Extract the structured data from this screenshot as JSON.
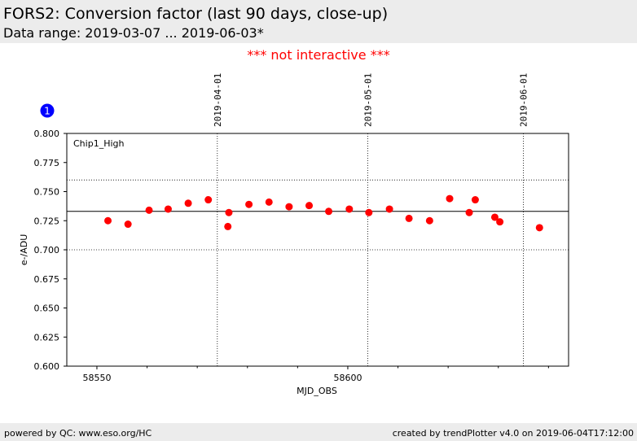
{
  "header": {
    "title": "FORS2: Conversion factor (last 90 days, close-up)",
    "subtitle": "Data range: 2019-03-07 ... 2019-06-03*"
  },
  "notice": "*** not interactive ***",
  "footer": {
    "left": "powered by QC: www.eso.org/HC",
    "right": "created by trendPlotter v4.0 on 2019-06-04T17:12:00"
  },
  "badge": "1",
  "colors": {
    "points": "#ff0000",
    "notice": "#ff0000",
    "badge": "#0000ff"
  },
  "chart_data": {
    "type": "scatter",
    "panel_label": "Chip1_High",
    "xlabel": "MJD_OBS",
    "ylabel": "e-/ADU",
    "xlim": [
      58544,
      58644
    ],
    "ylim": [
      0.6,
      0.8
    ],
    "x_ticks": [
      58550,
      58600
    ],
    "x_tick_labels": [
      "58550",
      "58600"
    ],
    "y_ticks": [
      0.6,
      0.625,
      0.65,
      0.675,
      0.7,
      0.725,
      0.75,
      0.775,
      0.8
    ],
    "y_tick_labels": [
      "0.600",
      "0.625",
      "0.650",
      "0.675",
      "0.700",
      "0.725",
      "0.750",
      "0.775",
      "0.800"
    ],
    "date_markers": [
      {
        "x": 58574,
        "label": "2019-04-01"
      },
      {
        "x": 58604,
        "label": "2019-05-01"
      },
      {
        "x": 58635,
        "label": "2019-06-01"
      }
    ],
    "reference_line": 0.733,
    "limit_lines": [
      0.7,
      0.76
    ],
    "points": [
      {
        "x": 58552.2,
        "y": 0.725
      },
      {
        "x": 58556.2,
        "y": 0.722
      },
      {
        "x": 58560.4,
        "y": 0.734
      },
      {
        "x": 58564.2,
        "y": 0.735
      },
      {
        "x": 58568.2,
        "y": 0.74
      },
      {
        "x": 58572.2,
        "y": 0.743
      },
      {
        "x": 58576.1,
        "y": 0.72
      },
      {
        "x": 58576.3,
        "y": 0.732
      },
      {
        "x": 58580.3,
        "y": 0.739
      },
      {
        "x": 58584.3,
        "y": 0.741
      },
      {
        "x": 58588.3,
        "y": 0.737
      },
      {
        "x": 58592.3,
        "y": 0.738
      },
      {
        "x": 58596.2,
        "y": 0.733
      },
      {
        "x": 58600.3,
        "y": 0.735
      },
      {
        "x": 58604.2,
        "y": 0.732
      },
      {
        "x": 58608.3,
        "y": 0.735
      },
      {
        "x": 58612.2,
        "y": 0.727
      },
      {
        "x": 58616.3,
        "y": 0.725
      },
      {
        "x": 58620.3,
        "y": 0.744
      },
      {
        "x": 58624.2,
        "y": 0.732
      },
      {
        "x": 58625.4,
        "y": 0.743
      },
      {
        "x": 58629.3,
        "y": 0.728
      },
      {
        "x": 58630.3,
        "y": 0.724
      },
      {
        "x": 58638.2,
        "y": 0.719
      }
    ]
  }
}
